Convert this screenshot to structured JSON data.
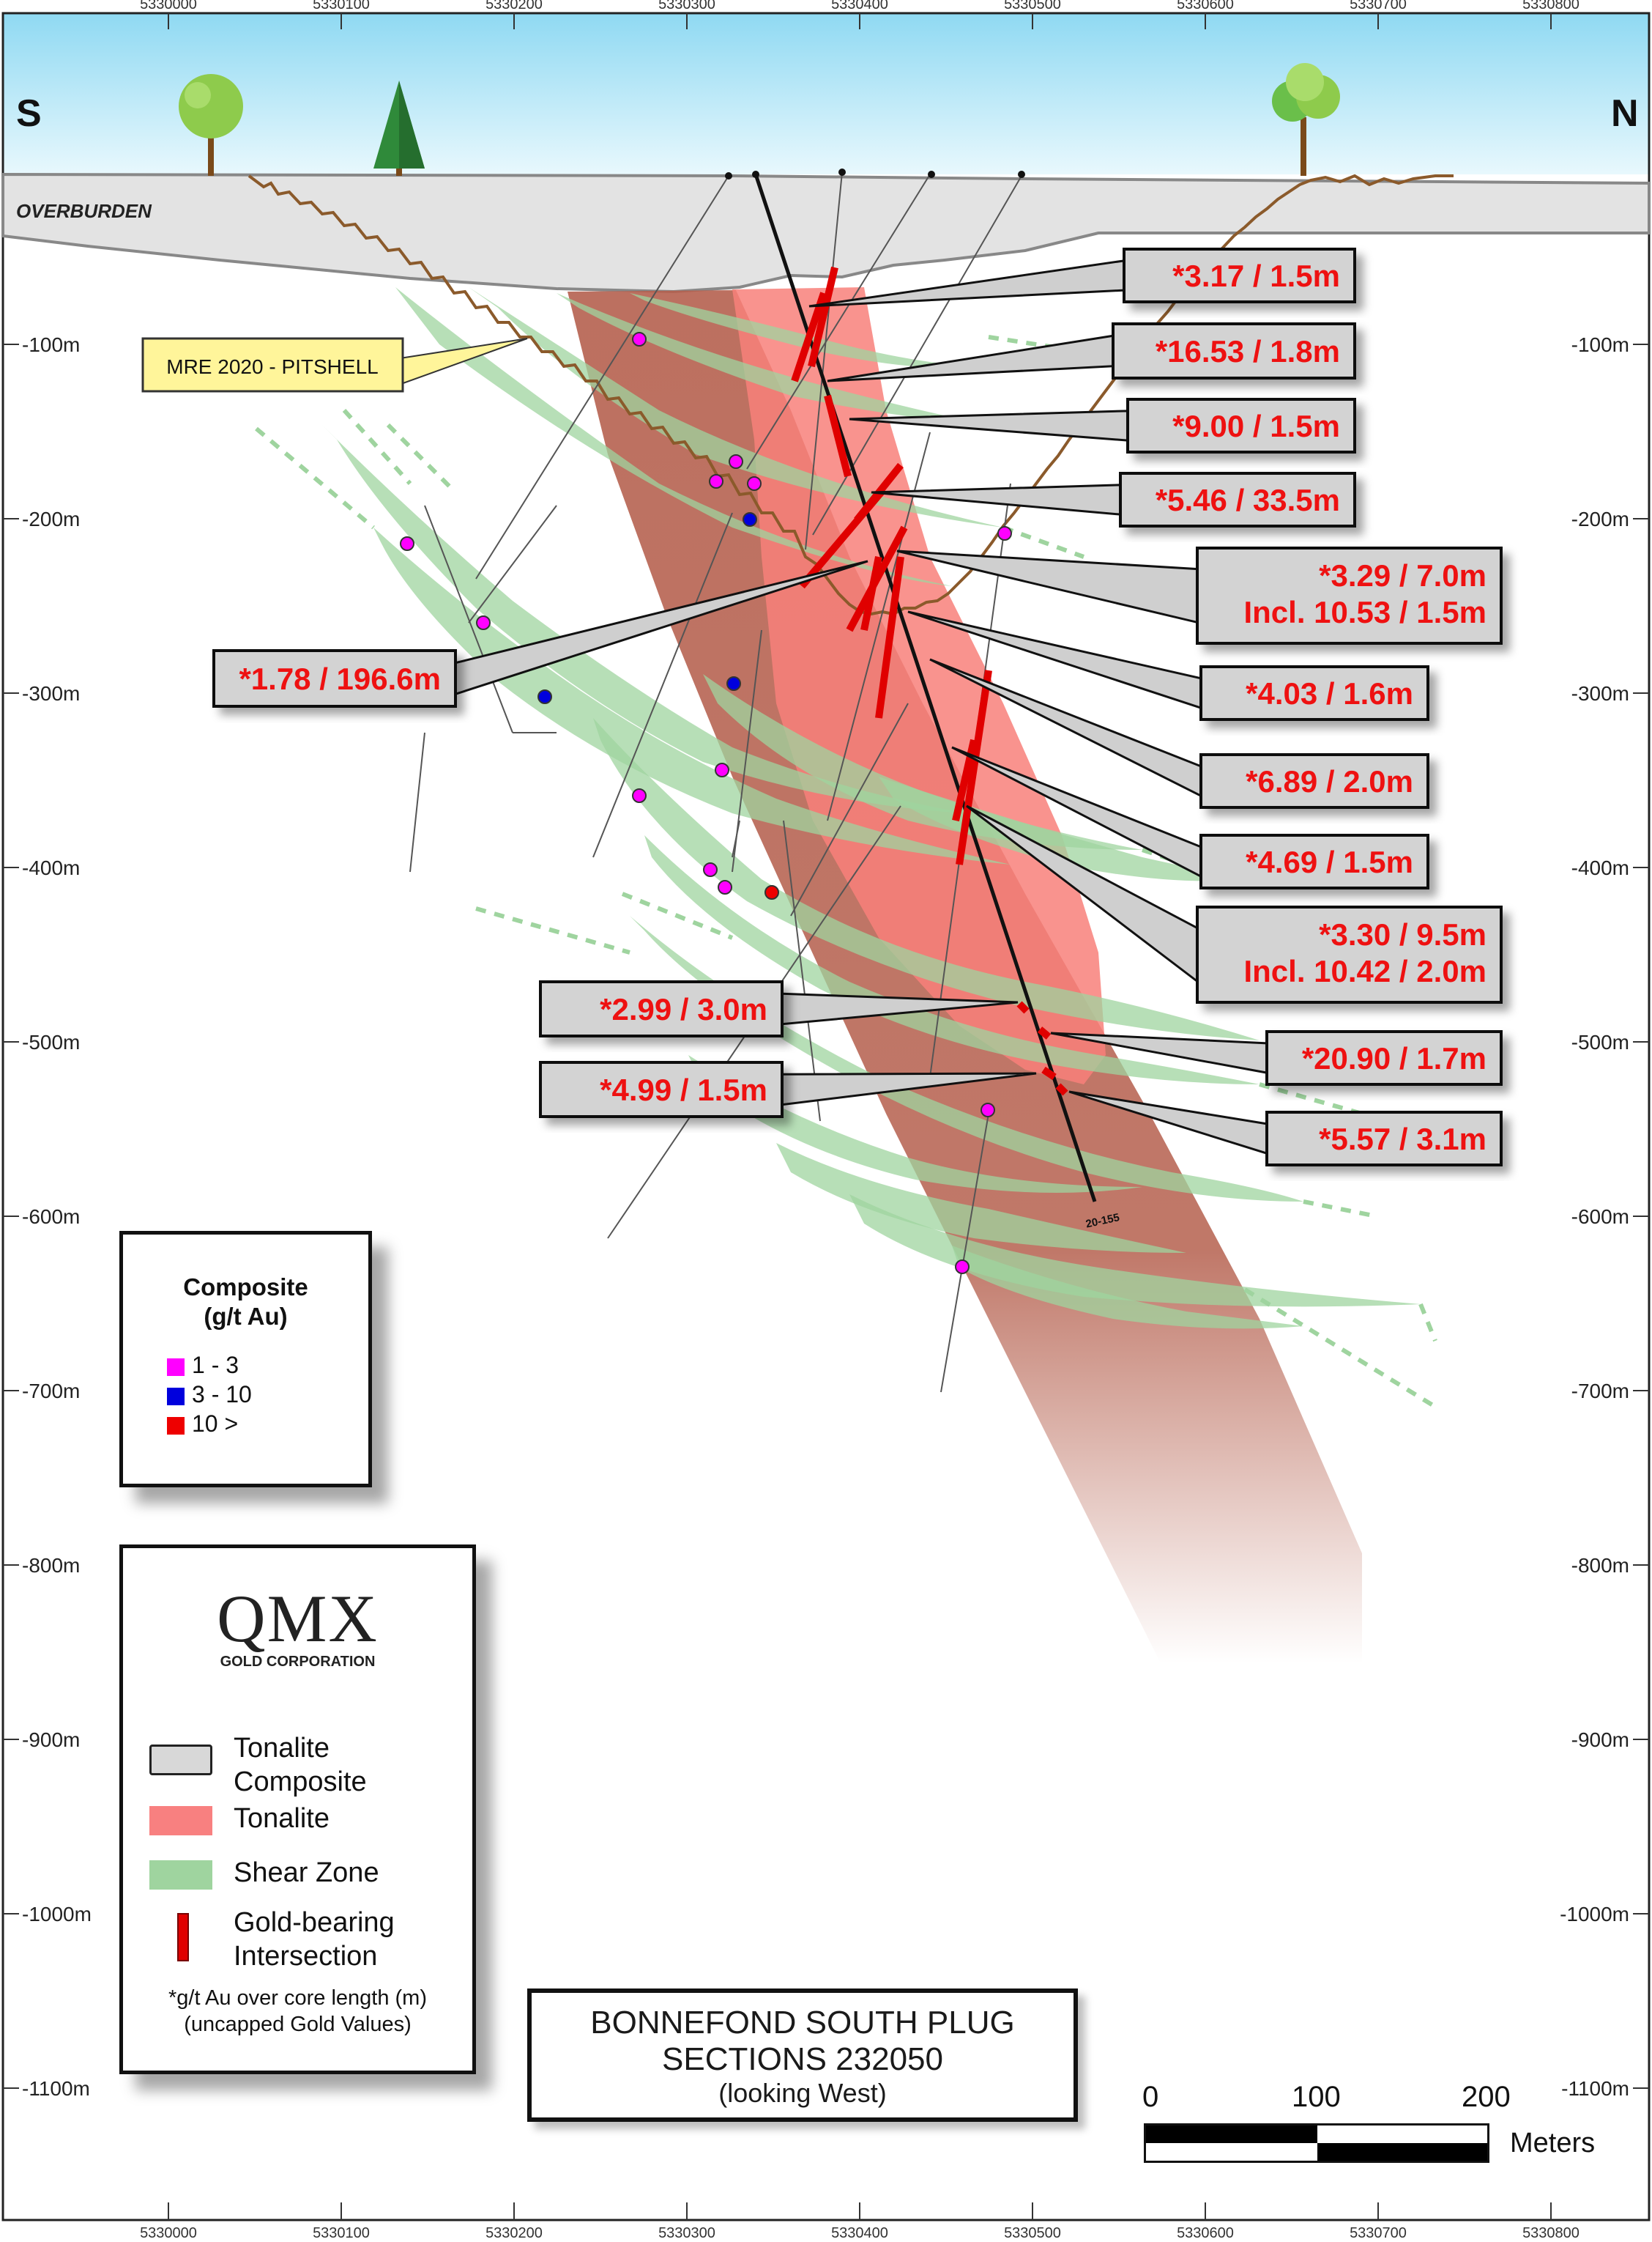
{
  "top_axis_labels": [
    "5330000",
    "5330100",
    "5330200",
    "5330300",
    "5330400",
    "5330500",
    "5330600",
    "5330700",
    "5330800"
  ],
  "bottom_axis_labels": [
    "5330000",
    "5330100",
    "5330200",
    "5330300",
    "5330400",
    "5330500",
    "5330600",
    "5330700",
    "5330800"
  ],
  "depth_labels_left": [
    "-100m",
    "-200m",
    "-300m",
    "-400m",
    "-500m",
    "-600m",
    "-700m",
    "-800m",
    "-900m",
    "-1000m",
    "-1100m"
  ],
  "depth_labels_right": [
    "-100m",
    "-200m",
    "-300m",
    "-400m",
    "-500m",
    "-600m",
    "-700m",
    "-800m",
    "-900m",
    "-1000m",
    "-1100m"
  ],
  "compass": {
    "south": "S",
    "north": "N"
  },
  "overburden_label": "OVERBURDEN",
  "pitshell_label": "MRE 2020 - PITSHELL",
  "hole_label": "20-155",
  "intercepts": [
    {
      "lines": [
        "*3.17 / 1.5m"
      ]
    },
    {
      "lines": [
        "*16.53 / 1.8m"
      ]
    },
    {
      "lines": [
        "*9.00 / 1.5m"
      ]
    },
    {
      "lines": [
        "*5.46 / 33.5m"
      ]
    },
    {
      "lines": [
        "*3.29 / 7.0m",
        "Incl. 10.53 / 1.5m"
      ]
    },
    {
      "lines": [
        "*1.78 / 196.6m"
      ]
    },
    {
      "lines": [
        "*4.03 / 1.6m"
      ]
    },
    {
      "lines": [
        "*6.89 / 2.0m"
      ]
    },
    {
      "lines": [
        "*4.69 / 1.5m"
      ]
    },
    {
      "lines": [
        "*3.30 / 9.5m",
        "Incl. 10.42 / 2.0m"
      ]
    },
    {
      "lines": [
        "*2.99 / 3.0m"
      ]
    },
    {
      "lines": [
        "*20.90 / 1.7m"
      ]
    },
    {
      "lines": [
        "*4.99 / 1.5m"
      ]
    },
    {
      "lines": [
        "*5.57 / 3.1m"
      ]
    }
  ],
  "composite_legend": {
    "title_line1": "Composite",
    "title_line2": "(g/t Au)",
    "items": [
      {
        "label": "1 - 3",
        "color": "#ff00ff"
      },
      {
        "label": "3 - 10",
        "color": "#0000dd"
      },
      {
        "label": "10 >",
        "color": "#ee0000"
      }
    ]
  },
  "main_legend": {
    "logo_text": "QMX",
    "logo_subtext": "GOLD CORPORATION",
    "items": [
      {
        "label_line1": "Tonalite",
        "label_line2": "Composite",
        "color": "#d8d8d8"
      },
      {
        "label_line1": "Tonalite",
        "label_line2": "",
        "color": "#f88080"
      },
      {
        "label_line1": "Shear Zone",
        "label_line2": "",
        "color": "#9fd49f"
      },
      {
        "label_line1": "Gold-bearing",
        "label_line2": "Intersection",
        "color": "#e00000"
      }
    ],
    "footnote_line1": "*g/t Au over core length (m)",
    "footnote_line2": "(uncapped Gold Values)"
  },
  "title": {
    "line1": "BONNEFOND SOUTH PLUG",
    "line2": "SECTIONS 232050",
    "line3": "(looking West)"
  },
  "scale_bar": {
    "ticks": [
      "0",
      "100",
      "200"
    ],
    "unit": "Meters"
  },
  "colors": {
    "intercept_text": "#ee1111",
    "tonalite": "#f88080",
    "composite": "#b86a5a",
    "shear": "#9fd49f",
    "sky": "#bfe9f7"
  }
}
